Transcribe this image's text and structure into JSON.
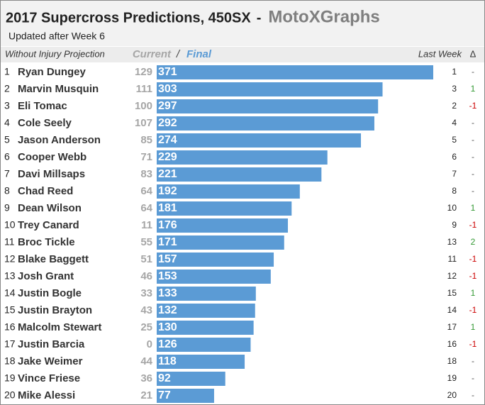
{
  "chart_data": {
    "type": "bar",
    "title": "2017 Supercross Predictions, 450SX",
    "separator": "-",
    "brand": "MotoXGraphs",
    "subtitle": "Updated after Week 6",
    "headers": {
      "projection": "Without Injury Projection",
      "current": "Current",
      "slash": "/",
      "final": "Final",
      "last_week": "Last Week",
      "delta": "Δ"
    },
    "ranks": [
      1,
      2,
      3,
      4,
      5,
      6,
      7,
      8,
      9,
      10,
      11,
      12,
      13,
      14,
      15,
      16,
      17,
      18,
      19,
      20
    ],
    "categories": [
      "Ryan Dungey",
      "Marvin Musquin",
      "Eli Tomac",
      "Cole Seely",
      "Jason Anderson",
      "Cooper Webb",
      "Davi Millsaps",
      "Chad Reed",
      "Dean Wilson",
      "Trey Canard",
      "Broc Tickle",
      "Blake Baggett",
      "Josh Grant",
      "Justin Bogle",
      "Justin Brayton",
      "Malcolm Stewart",
      "Justin Barcia",
      "Jake Weimer",
      "Vince Friese",
      "Mike Alessi"
    ],
    "current": [
      129,
      111,
      100,
      107,
      85,
      71,
      83,
      64,
      64,
      11,
      55,
      51,
      46,
      33,
      43,
      25,
      0,
      44,
      36,
      21
    ],
    "values": [
      371,
      303,
      297,
      292,
      274,
      229,
      221,
      192,
      181,
      176,
      171,
      157,
      153,
      133,
      132,
      130,
      126,
      118,
      92,
      77
    ],
    "color": "#5b9bd5",
    "last_week": [
      1,
      3,
      2,
      4,
      5,
      6,
      7,
      8,
      10,
      9,
      13,
      11,
      12,
      15,
      14,
      17,
      16,
      18,
      19,
      20
    ],
    "change": {
      "values": [
        0,
        1,
        -1,
        0,
        0,
        0,
        0,
        0,
        1,
        -1,
        2,
        -1,
        -1,
        1,
        -1,
        1,
        -1,
        0,
        0,
        0
      ],
      "value_labels": [
        "-",
        "1",
        "-1",
        "-",
        "-",
        "-",
        "-",
        "-",
        "1",
        "-1",
        "2",
        "-1",
        "-1",
        "1",
        "-1",
        "1",
        "-1",
        "-",
        "-",
        "-"
      ],
      "colors": {
        "up": "#339933",
        "down": "#cc0000",
        "same": "#555555"
      }
    }
  }
}
